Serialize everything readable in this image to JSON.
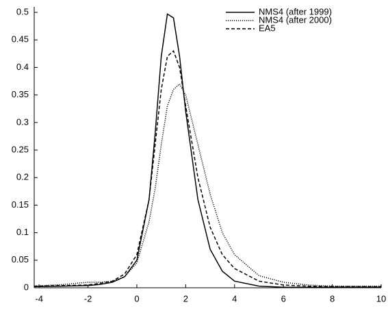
{
  "chart_data": {
    "type": "line",
    "x": [
      -4.2,
      -3,
      -2,
      -1.5,
      -1,
      -0.5,
      0,
      0.5,
      0.75,
      1,
      1.25,
      1.5,
      1.75,
      2,
      2.5,
      3,
      3.5,
      4,
      5,
      6,
      7,
      8,
      10
    ],
    "series": [
      {
        "name": "NMS4 (after 1999)",
        "color": "#000000",
        "style": "solid",
        "values": [
          0.002,
          0.003,
          0.004,
          0.006,
          0.01,
          0.02,
          0.05,
          0.16,
          0.28,
          0.42,
          0.497,
          0.49,
          0.42,
          0.32,
          0.16,
          0.07,
          0.03,
          0.012,
          0.003,
          0.001,
          0.001,
          0.001,
          0.001
        ]
      },
      {
        "name": "NMS4 (after 2000)",
        "color": "#000000",
        "style": "dotted",
        "values": [
          0.003,
          0.006,
          0.01,
          0.01,
          0.012,
          0.02,
          0.045,
          0.12,
          0.18,
          0.26,
          0.33,
          0.36,
          0.37,
          0.35,
          0.26,
          0.17,
          0.1,
          0.06,
          0.022,
          0.01,
          0.005,
          0.003,
          0.003
        ]
      },
      {
        "name": "EA5",
        "color": "#000000",
        "style": "dashed",
        "values": [
          0.003,
          0.004,
          0.005,
          0.008,
          0.012,
          0.025,
          0.06,
          0.16,
          0.26,
          0.36,
          0.42,
          0.43,
          0.4,
          0.33,
          0.2,
          0.11,
          0.06,
          0.035,
          0.012,
          0.005,
          0.003,
          0.002,
          0.002
        ]
      }
    ],
    "xlim": [
      -4.2,
      10
    ],
    "ylim": [
      0,
      0.51
    ],
    "xticks": [
      -4,
      -2,
      0,
      2,
      4,
      6,
      8,
      10
    ],
    "yticks": [
      0,
      0.05,
      0.1,
      0.15,
      0.2,
      0.25,
      0.3,
      0.35,
      0.4,
      0.45,
      0.5
    ],
    "legend": "upper right"
  }
}
